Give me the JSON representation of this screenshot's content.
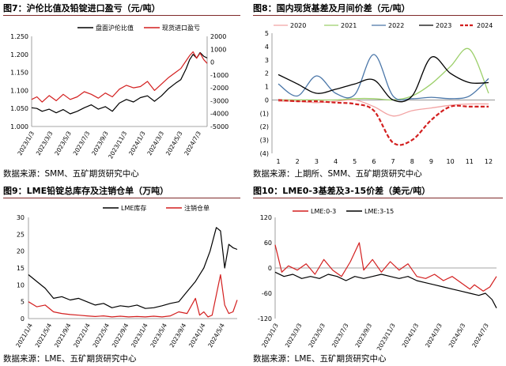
{
  "panels": [
    {
      "title": "图7：沪伦比值及铅锭进口盈亏（元/吨）",
      "source": "数据来源：SMM、五矿期货研究中心"
    },
    {
      "title": "图8：国内现货基差及月间价差（元/吨）",
      "source": "数据来源：上期所、SMM、五矿期货研究中心"
    },
    {
      "title": "图9：LME铅锭总库存及注销仓单（万吨）",
      "source": "数据来源：LME、五矿期货研究中心"
    },
    {
      "title": "图10：LME0-3基差及3-15价差（美元/吨）",
      "source": "数据来源：LME、五矿期货研究中心"
    }
  ],
  "colors": {
    "black": "#000000",
    "red": "#d31f1f",
    "pink": "#f2a3a3",
    "green": "#9ccf6a",
    "blue": "#4a76a8",
    "header_rule": "#7f2a2a"
  },
  "chart_data": [
    {
      "type": "line",
      "title": "图7：沪伦比值及铅锭进口盈亏（元/吨）",
      "legend": [
        "盘面沪伦比值",
        "现货进口盈亏"
      ],
      "y_left": {
        "ticks": [
          "1.000",
          "1.050",
          "1.100",
          "1.150",
          "1.200",
          "1.250"
        ],
        "range": [
          1.0,
          1.25
        ]
      },
      "y_right": {
        "ticks": [
          "-5000",
          "-4000",
          "-3000",
          "-2000",
          "-1000",
          "0",
          "1000",
          "2000"
        ],
        "range": [
          -5000,
          2000
        ]
      },
      "x_ticks": [
        "2023/1/3",
        "2023/3/3",
        "2023/5/3",
        "2023/7/3",
        "2023/9/3",
        "2023/11/3",
        "2024/1/3",
        "2024/3/3",
        "2024/5/3",
        "2024/7/3"
      ],
      "series": [
        {
          "name": "盘面沪伦比值",
          "axis": "left",
          "color": "#000000",
          "points": [
            [
              0,
              1.052
            ],
            [
              0.03,
              1.05
            ],
            [
              0.06,
              1.042
            ],
            [
              0.1,
              1.048
            ],
            [
              0.14,
              1.038
            ],
            [
              0.18,
              1.047
            ],
            [
              0.22,
              1.035
            ],
            [
              0.26,
              1.042
            ],
            [
              0.3,
              1.052
            ],
            [
              0.34,
              1.06
            ],
            [
              0.38,
              1.048
            ],
            [
              0.42,
              1.055
            ],
            [
              0.46,
              1.042
            ],
            [
              0.5,
              1.065
            ],
            [
              0.54,
              1.075
            ],
            [
              0.58,
              1.068
            ],
            [
              0.62,
              1.08
            ],
            [
              0.66,
              1.085
            ],
            [
              0.7,
              1.07
            ],
            [
              0.74,
              1.085
            ],
            [
              0.78,
              1.105
            ],
            [
              0.82,
              1.12
            ],
            [
              0.85,
              1.13
            ],
            [
              0.88,
              1.16
            ],
            [
              0.9,
              1.185
            ],
            [
              0.92,
              1.2
            ],
            [
              0.94,
              1.19
            ],
            [
              0.96,
              1.205
            ],
            [
              0.98,
              1.195
            ],
            [
              1,
              1.19
            ]
          ]
        },
        {
          "name": "现货进口盈亏",
          "axis": "right",
          "color": "#d31f1f",
          "points": [
            [
              0,
              -2900
            ],
            [
              0.03,
              -2700
            ],
            [
              0.06,
              -3100
            ],
            [
              0.1,
              -2600
            ],
            [
              0.14,
              -3000
            ],
            [
              0.18,
              -2500
            ],
            [
              0.22,
              -2900
            ],
            [
              0.26,
              -2700
            ],
            [
              0.3,
              -2300
            ],
            [
              0.34,
              -2500
            ],
            [
              0.38,
              -2800
            ],
            [
              0.42,
              -2400
            ],
            [
              0.46,
              -2700
            ],
            [
              0.5,
              -2100
            ],
            [
              0.54,
              -1800
            ],
            [
              0.58,
              -2000
            ],
            [
              0.62,
              -1900
            ],
            [
              0.66,
              -1500
            ],
            [
              0.7,
              -2200
            ],
            [
              0.74,
              -1700
            ],
            [
              0.78,
              -1200
            ],
            [
              0.82,
              -800
            ],
            [
              0.85,
              -500
            ],
            [
              0.88,
              100
            ],
            [
              0.9,
              500
            ],
            [
              0.92,
              800
            ],
            [
              0.94,
              300
            ],
            [
              0.96,
              700
            ],
            [
              0.98,
              200
            ],
            [
              1,
              -100
            ]
          ]
        }
      ]
    },
    {
      "type": "line",
      "title": "图8：国内现货基差及月间价差（元/吨）",
      "x_ticks": [
        "1",
        "2",
        "3",
        "4",
        "5",
        "6",
        "7",
        "8",
        "9",
        "10",
        "11",
        "12"
      ],
      "y_ticks": [
        "5",
        "4",
        "3",
        "2",
        "1",
        "0",
        "(1)",
        "(2)",
        "(3)",
        "(4)"
      ],
      "ylim": [
        -4,
        5
      ],
      "legend": [
        "2020",
        "2021",
        "2022",
        "2023",
        "2024"
      ],
      "series": [
        {
          "name": "2020",
          "color": "#f2a3a3",
          "values": [
            -0.1,
            -0.1,
            -0.2,
            -0.1,
            0.0,
            -0.5,
            -1.2,
            -0.8,
            -0.6,
            -0.4,
            -0.3,
            -0.3
          ]
        },
        {
          "name": "2021",
          "color": "#9ccf6a",
          "values": [
            0.0,
            0.0,
            0.0,
            0.0,
            0.1,
            0.1,
            0.0,
            0.3,
            1.2,
            2.5,
            3.8,
            0.5
          ]
        },
        {
          "name": "2022",
          "color": "#4a76a8",
          "values": [
            1.2,
            0.3,
            1.8,
            0.5,
            0.4,
            3.4,
            0.3,
            0.1,
            0.2,
            0.1,
            0.3,
            1.6
          ]
        },
        {
          "name": "2023",
          "color": "#000000",
          "values": [
            1.9,
            1.2,
            0.5,
            0.8,
            1.2,
            1.5,
            0.0,
            0.3,
            3.2,
            2.0,
            1.3,
            1.3
          ]
        },
        {
          "name": "2024",
          "color": "#d31f1f",
          "values": [
            0.0,
            -0.1,
            -0.1,
            -0.2,
            -0.3,
            -0.8,
            -3.2,
            -3.0,
            -1.5,
            -0.5,
            -0.5,
            -0.5
          ]
        }
      ]
    },
    {
      "type": "line",
      "title": "图9：LME铅锭总库存及注销仓单（万吨）",
      "legend": [
        "LME库存",
        "注销仓单"
      ],
      "y_ticks": [
        "0",
        "5",
        "10",
        "15",
        "20",
        "25",
        "30"
      ],
      "ylim": [
        0,
        30
      ],
      "x_ticks": [
        "2021/1/4",
        "2021/5/4",
        "2021/9/4",
        "2022/1/4",
        "2022/5/4",
        "2022/9/4",
        "2023/1/4",
        "2023/5/4",
        "2023/9/4",
        "2024/1/4",
        "2024/5/4"
      ],
      "series": [
        {
          "name": "LME库存",
          "color": "#000000",
          "points": [
            [
              0,
              13
            ],
            [
              0.04,
              11
            ],
            [
              0.08,
              9
            ],
            [
              0.12,
              6
            ],
            [
              0.16,
              6.5
            ],
            [
              0.2,
              5.5
            ],
            [
              0.24,
              6
            ],
            [
              0.28,
              5
            ],
            [
              0.32,
              4
            ],
            [
              0.36,
              4.5
            ],
            [
              0.4,
              3.2
            ],
            [
              0.44,
              3.8
            ],
            [
              0.48,
              3.5
            ],
            [
              0.52,
              4
            ],
            [
              0.56,
              3
            ],
            [
              0.6,
              3.2
            ],
            [
              0.64,
              3.8
            ],
            [
              0.68,
              4.5
            ],
            [
              0.72,
              5
            ],
            [
              0.76,
              8
            ],
            [
              0.8,
              11
            ],
            [
              0.84,
              15
            ],
            [
              0.87,
              20
            ],
            [
              0.9,
              27
            ],
            [
              0.92,
              26
            ],
            [
              0.94,
              15
            ],
            [
              0.96,
              22
            ],
            [
              0.98,
              21
            ],
            [
              1,
              20.5
            ]
          ]
        },
        {
          "name": "注销仓单",
          "color": "#d31f1f",
          "points": [
            [
              0,
              5
            ],
            [
              0.04,
              3.5
            ],
            [
              0.08,
              4
            ],
            [
              0.12,
              2
            ],
            [
              0.16,
              1.5
            ],
            [
              0.2,
              1.2
            ],
            [
              0.24,
              1
            ],
            [
              0.28,
              0.8
            ],
            [
              0.32,
              0.6
            ],
            [
              0.36,
              0.8
            ],
            [
              0.4,
              0.5
            ],
            [
              0.44,
              0.7
            ],
            [
              0.48,
              0.5
            ],
            [
              0.52,
              0.6
            ],
            [
              0.56,
              0.5
            ],
            [
              0.6,
              0.7
            ],
            [
              0.64,
              0.5
            ],
            [
              0.68,
              0.8
            ],
            [
              0.72,
              2
            ],
            [
              0.76,
              1.5
            ],
            [
              0.8,
              6
            ],
            [
              0.82,
              1
            ],
            [
              0.84,
              2
            ],
            [
              0.86,
              0.5
            ],
            [
              0.88,
              1
            ],
            [
              0.9,
              7
            ],
            [
              0.92,
              13
            ],
            [
              0.94,
              4
            ],
            [
              0.96,
              1.5
            ],
            [
              0.98,
              2
            ],
            [
              1,
              5.5
            ]
          ]
        }
      ]
    },
    {
      "type": "line",
      "title": "图10：LME0-3基差及3-15价差（美元/吨）",
      "legend": [
        "LME:0-3",
        "LME:3-15"
      ],
      "y_ticks": [
        "-120",
        "-60",
        "0",
        "60",
        "120"
      ],
      "ylim": [
        -120,
        120
      ],
      "x_ticks": [
        "2023/1/3",
        "2023/3/3",
        "2023/5/3",
        "2023/7/3",
        "2023/9/3",
        "2023/11/3",
        "2024/1/3",
        "2024/3/3",
        "2024/5/3",
        "2024/7/3"
      ],
      "series": [
        {
          "name": "LME:0-3",
          "color": "#d31f1f",
          "points": [
            [
              0,
              55
            ],
            [
              0.03,
              -10
            ],
            [
              0.06,
              5
            ],
            [
              0.1,
              -5
            ],
            [
              0.14,
              10
            ],
            [
              0.18,
              -15
            ],
            [
              0.22,
              20
            ],
            [
              0.26,
              -5
            ],
            [
              0.3,
              -20
            ],
            [
              0.34,
              15
            ],
            [
              0.38,
              60
            ],
            [
              0.4,
              -5
            ],
            [
              0.44,
              20
            ],
            [
              0.48,
              -10
            ],
            [
              0.52,
              15
            ],
            [
              0.56,
              -5
            ],
            [
              0.6,
              10
            ],
            [
              0.64,
              -20
            ],
            [
              0.68,
              -25
            ],
            [
              0.72,
              -15
            ],
            [
              0.76,
              -30
            ],
            [
              0.8,
              -20
            ],
            [
              0.84,
              -35
            ],
            [
              0.88,
              -50
            ],
            [
              0.9,
              -40
            ],
            [
              0.94,
              -55
            ],
            [
              0.97,
              -45
            ],
            [
              1,
              -20
            ]
          ]
        },
        {
          "name": "LME:3-15",
          "color": "#000000",
          "points": [
            [
              0,
              -10
            ],
            [
              0.04,
              -20
            ],
            [
              0.08,
              -15
            ],
            [
              0.12,
              -25
            ],
            [
              0.16,
              -20
            ],
            [
              0.2,
              -25
            ],
            [
              0.24,
              -15
            ],
            [
              0.28,
              -20
            ],
            [
              0.32,
              -30
            ],
            [
              0.36,
              -20
            ],
            [
              0.4,
              -25
            ],
            [
              0.44,
              -20
            ],
            [
              0.48,
              -15
            ],
            [
              0.52,
              -20
            ],
            [
              0.56,
              -25
            ],
            [
              0.6,
              -20
            ],
            [
              0.64,
              -30
            ],
            [
              0.68,
              -35
            ],
            [
              0.72,
              -40
            ],
            [
              0.76,
              -45
            ],
            [
              0.8,
              -50
            ],
            [
              0.84,
              -55
            ],
            [
              0.88,
              -60
            ],
            [
              0.92,
              -65
            ],
            [
              0.95,
              -60
            ],
            [
              0.98,
              -75
            ],
            [
              1,
              -95
            ]
          ]
        }
      ]
    }
  ]
}
